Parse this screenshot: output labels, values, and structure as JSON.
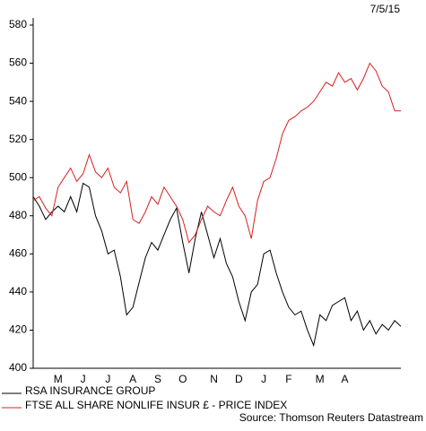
{
  "chart_data": {
    "type": "line",
    "date": "7/5/15",
    "source": "Source: Thomson Reuters Datastream",
    "categories": [
      null,
      null,
      null,
      null,
      "M",
      null,
      null,
      null,
      "J",
      null,
      null,
      null,
      "J",
      null,
      null,
      null,
      "A",
      null,
      null,
      null,
      "S",
      null,
      null,
      null,
      "O",
      null,
      null,
      null,
      null,
      "N",
      null,
      null,
      null,
      "D",
      null,
      null,
      null,
      "J",
      null,
      null,
      null,
      "F",
      null,
      null,
      null,
      null,
      "M",
      null,
      null,
      null,
      "A",
      null,
      null,
      null,
      null,
      null,
      null,
      null,
      null,
      null
    ],
    "series": [
      {
        "name": "RSA INSURANCE GROUP",
        "color": "#000000",
        "values": [
          490,
          485,
          478,
          482,
          485,
          482,
          490,
          482,
          497,
          495,
          480,
          472,
          460,
          462,
          448,
          428,
          432,
          445,
          458,
          466,
          462,
          470,
          478,
          484,
          466,
          450,
          468,
          482,
          470,
          458,
          468,
          455,
          448,
          435,
          425,
          440,
          444,
          460,
          462,
          450,
          440,
          432,
          428,
          430,
          420,
          412,
          428,
          425,
          433,
          435,
          437,
          425,
          430,
          420,
          425,
          418,
          423,
          420,
          425,
          422
        ]
      },
      {
        "name": "FTSE ALL SHARE NONLIFE INSUR £ - PRICE INDEX",
        "color": "#d62020",
        "values": [
          488,
          490,
          484,
          480,
          495,
          500,
          505,
          498,
          502,
          512,
          503,
          500,
          505,
          495,
          492,
          498,
          478,
          476,
          482,
          490,
          486,
          495,
          490,
          485,
          478,
          466,
          470,
          478,
          485,
          482,
          480,
          488,
          495,
          485,
          480,
          468,
          488,
          498,
          500,
          510,
          523,
          530,
          532,
          535,
          537,
          540,
          545,
          550,
          548,
          555,
          550,
          552,
          546,
          552,
          560,
          556,
          548,
          545,
          535,
          535
        ]
      }
    ],
    "ylim": [
      400,
      580
    ],
    "yticks": [
      400,
      420,
      440,
      460,
      480,
      500,
      520,
      540,
      560,
      580
    ]
  }
}
